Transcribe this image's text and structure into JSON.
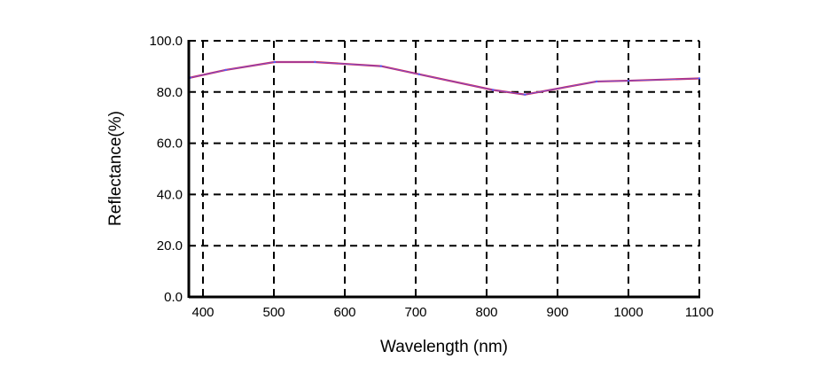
{
  "chart_data": {
    "type": "line",
    "title": "",
    "xlabel": "Wavelength (nm)",
    "ylabel": "Reflectance(%)",
    "xlim": [
      380,
      1100
    ],
    "ylim": [
      0,
      100
    ],
    "x_ticks": [
      400,
      500,
      600,
      700,
      800,
      900,
      1000,
      1100
    ],
    "x_tick_labels": [
      "400",
      "500",
      "600",
      "700",
      "800",
      "900",
      "1000",
      "1100"
    ],
    "y_ticks": [
      0,
      20,
      40,
      60,
      80,
      100
    ],
    "y_tick_labels": [
      "0.0",
      "20.0",
      "40.0",
      "60.0",
      "80.0",
      "100.0"
    ],
    "grid": true,
    "grid_style": "dashed",
    "series": [
      {
        "color": "#d02860",
        "overlay_color": "#5060ff",
        "x": [
          382,
          432,
          501,
          558,
          651,
          705,
          809,
          854,
          955,
          1000,
          1100
        ],
        "y": [
          85.6,
          88.6,
          91.7,
          91.7,
          90.1,
          86.9,
          80.8,
          79.0,
          84.1,
          84.4,
          85.3
        ]
      }
    ]
  }
}
